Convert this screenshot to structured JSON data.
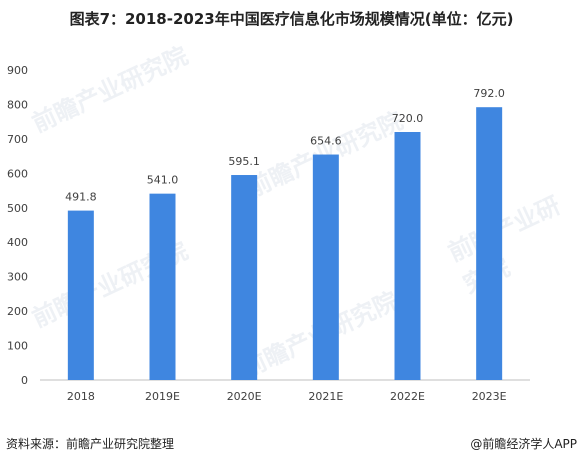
{
  "title": "图表7：2018-2023年中国医疗信息化市场规模情况(单位：亿元)",
  "footer": {
    "source": "资料来源：前瞻产业研究院整理",
    "credit": "@前瞻经济学人APP"
  },
  "watermark": {
    "text": "前瞻产业研究院"
  },
  "colors": {
    "bar": "#3f86e0",
    "axis": "#bfbfbf",
    "tick_text": "#404040"
  },
  "chart_data": {
    "type": "bar",
    "categories": [
      "2018",
      "2019E",
      "2020E",
      "2021E",
      "2022E",
      "2023E"
    ],
    "values": [
      491.8,
      541.0,
      595.1,
      654.6,
      720.0,
      792.0
    ],
    "value_labels": [
      "491.8",
      "541.0",
      "595.1",
      "654.6",
      "720.0",
      "792.0"
    ],
    "ylim": [
      0,
      900
    ],
    "yticks": [
      0,
      100,
      200,
      300,
      400,
      500,
      600,
      700,
      800,
      900
    ],
    "grid": false,
    "legend": "none"
  }
}
